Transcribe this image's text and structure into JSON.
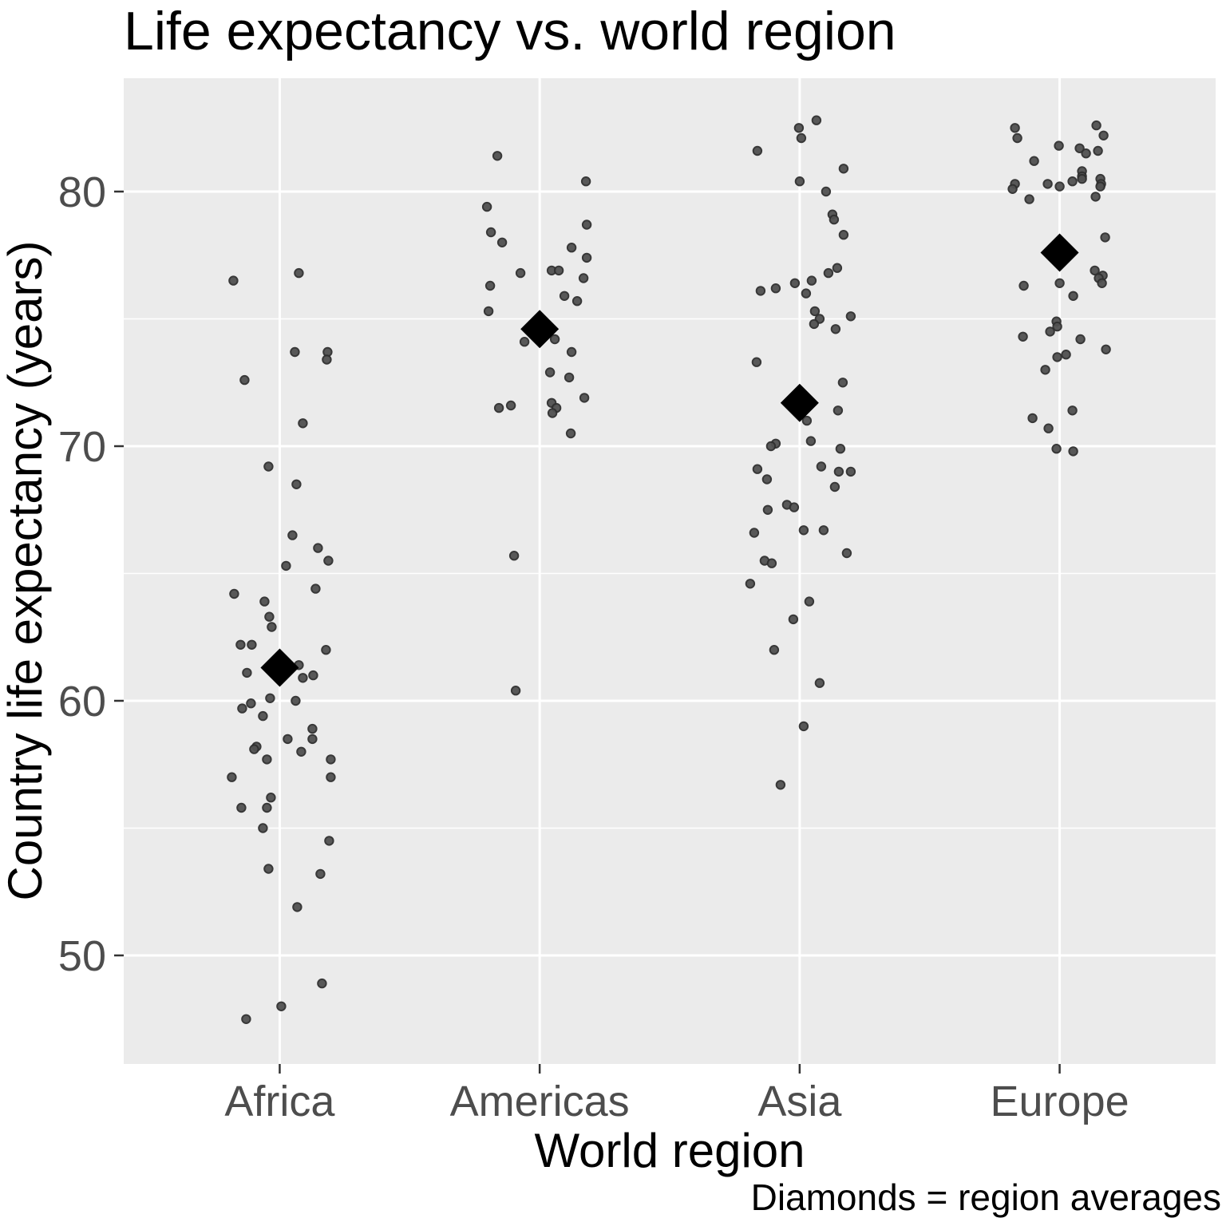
{
  "title": "Life expectancy vs. world region",
  "caption": "Diamonds = region averages",
  "chart_data": {
    "type": "scatter",
    "title": "Life expectancy vs. world region",
    "xlabel": "World region",
    "ylabel": "Country life expectancy (years)",
    "caption": "Diamonds = region averages",
    "categories": [
      "Africa",
      "Americas",
      "Asia",
      "Europe"
    ],
    "y_ticks": [
      50,
      60,
      70,
      80
    ],
    "y_minor_ticks": [
      55,
      65,
      75
    ],
    "ylim": [
      45.7,
      84.5
    ],
    "grid": "white major and minor horizontal lines, white vertical line at each category center, gray panel",
    "legend": "none",
    "averages": [
      61.3,
      74.6,
      71.7,
      77.6
    ],
    "series": [
      {
        "name": "Africa",
        "values": [
          76.5,
          76.8,
          73.7,
          73.7,
          73.4,
          72.6,
          70.9,
          69.2,
          68.5,
          66.5,
          66.0,
          65.5,
          65.3,
          64.4,
          64.2,
          63.9,
          63.3,
          62.9,
          62.2,
          62.2,
          62.0,
          61.4,
          61.1,
          61.0,
          60.9,
          60.1,
          60.0,
          59.9,
          59.7,
          59.4,
          58.9,
          58.5,
          58.5,
          58.2,
          58.1,
          58.0,
          57.7,
          57.7,
          57.0,
          57.0,
          56.2,
          55.8,
          55.8,
          55.0,
          54.5,
          53.4,
          53.2,
          51.9,
          48.9,
          48.0,
          47.5
        ],
        "jitter": [
          -58,
          24,
          19,
          60,
          59,
          -44,
          29,
          -14,
          21,
          16,
          48,
          61,
          8,
          45,
          -57,
          -19,
          -13,
          -10,
          -49,
          -35,
          58,
          24,
          -41,
          42,
          29,
          -12,
          20,
          -36,
          -47,
          -21,
          41,
          10,
          41,
          -29,
          -32,
          27,
          -16,
          64,
          -60,
          64,
          -11,
          -48,
          -16,
          -21,
          62,
          -14,
          51,
          22,
          53,
          2,
          -42
        ]
      },
      {
        "name": "Americas",
        "values": [
          81.4,
          80.4,
          79.4,
          78.7,
          78.4,
          78.0,
          77.8,
          77.4,
          76.9,
          76.9,
          76.8,
          76.6,
          76.3,
          75.9,
          75.7,
          75.3,
          74.2,
          74.1,
          73.7,
          72.9,
          72.7,
          71.9,
          71.7,
          71.6,
          71.5,
          71.5,
          71.3,
          70.5,
          65.7,
          60.4
        ],
        "jitter": [
          -53,
          58,
          -66,
          59,
          -61,
          -47,
          40,
          59,
          15,
          24,
          -24,
          55,
          -62,
          31,
          47,
          -64,
          19,
          -19,
          40,
          13,
          37,
          56,
          15,
          -36,
          -51,
          21,
          16,
          39,
          -32,
          -30
        ]
      },
      {
        "name": "Asia",
        "values": [
          82.8,
          82.5,
          82.1,
          81.6,
          80.9,
          80.4,
          80.0,
          79.1,
          78.9,
          78.3,
          77.0,
          76.8,
          76.5,
          76.4,
          76.2,
          76.1,
          76.0,
          75.3,
          75.1,
          75.0,
          74.8,
          74.6,
          73.3,
          72.5,
          71.4,
          71.0,
          70.2,
          70.1,
          70.0,
          69.9,
          69.2,
          69.1,
          69.0,
          69.0,
          68.7,
          68.4,
          67.7,
          67.6,
          67.5,
          66.7,
          66.7,
          66.6,
          65.8,
          65.5,
          65.4,
          64.6,
          63.9,
          63.2,
          62.0,
          60.7,
          59.0,
          56.7
        ],
        "jitter": [
          21,
          -1,
          2,
          -53,
          55,
          0,
          33,
          41,
          43,
          55,
          47,
          36,
          15,
          -6,
          -30,
          -49,
          8,
          19,
          64,
          25,
          18,
          45,
          -54,
          54,
          48,
          9,
          14,
          -30,
          -36,
          51,
          27,
          -53,
          49,
          64,
          -41,
          44,
          -16,
          -7,
          -40,
          5,
          30,
          -57,
          59,
          -44,
          -35,
          -62,
          12,
          -8,
          -32,
          25,
          5,
          -24
        ]
      },
      {
        "name": "Europe",
        "values": [
          82.6,
          82.5,
          82.2,
          82.1,
          81.8,
          81.7,
          81.6,
          81.5,
          81.2,
          80.8,
          80.6,
          80.5,
          80.5,
          80.4,
          80.3,
          80.3,
          80.3,
          80.2,
          80.2,
          80.1,
          79.8,
          79.7,
          78.2,
          76.9,
          76.7,
          76.6,
          76.4,
          76.4,
          76.3,
          75.9,
          74.9,
          74.7,
          74.5,
          74.3,
          74.2,
          73.8,
          73.6,
          73.5,
          73.0,
          71.4,
          71.1,
          70.7,
          69.9,
          69.8
        ],
        "jitter": [
          46,
          -56,
          55,
          -53,
          -1,
          25,
          48,
          33,
          -32,
          28,
          28,
          28,
          51,
          16,
          52,
          -15,
          -56,
          0,
          51,
          -59,
          45,
          -38,
          57,
          44,
          54,
          49,
          53,
          0,
          -45,
          17,
          -4,
          -3,
          -12,
          -46,
          26,
          58,
          8,
          -3,
          -18,
          16,
          -34,
          -14,
          -4,
          17
        ]
      }
    ],
    "colors": {
      "panel_bg": "#EBEBEB",
      "grid": "#FFFFFF",
      "point_fill": "#515151",
      "point_stroke": "#2f2f2f",
      "diamond": "#000000",
      "tick_text": "#4d4d4d",
      "tick_mark": "#333333",
      "title_text": "#000000"
    }
  }
}
